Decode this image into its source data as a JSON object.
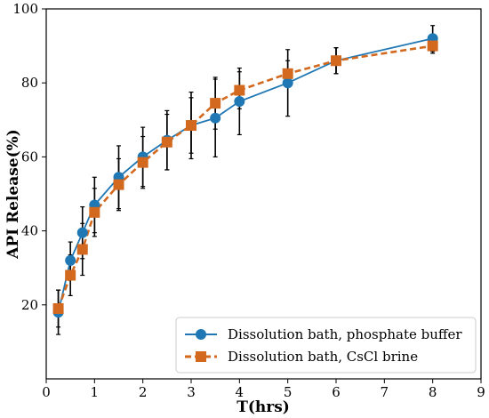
{
  "chart_data": {
    "type": "line",
    "title": "",
    "xlabel": "T(hrs)",
    "ylabel": "API Release(%)",
    "xlim": [
      0,
      9
    ],
    "ylim": [
      0,
      100
    ],
    "xticks": [
      0,
      1,
      2,
      3,
      4,
      5,
      6,
      7,
      8,
      9
    ],
    "yticks": [
      20,
      40,
      60,
      80,
      100
    ],
    "grid": false,
    "legend_position": "bottom-right",
    "series": [
      {
        "name": "Dissolution bath, phosphate buffer",
        "color": "#1f77b4",
        "line_style": "solid",
        "marker": "circle",
        "x": [
          0.25,
          0.5,
          0.75,
          1,
          1.5,
          2,
          2.5,
          3,
          3.5,
          4,
          5,
          6,
          8
        ],
        "y": [
          18,
          32,
          39.5,
          47,
          54.5,
          60,
          64.5,
          68.5,
          70.5,
          75,
          80,
          86,
          92
        ],
        "err": [
          6,
          5,
          7,
          7.5,
          8.5,
          8,
          8,
          9,
          10.5,
          9,
          9,
          3.5,
          3.5
        ]
      },
      {
        "name": "Dissolution bath, CsCl brine",
        "color": "#d2691e",
        "line_style": "dashed",
        "marker": "square",
        "x": [
          0.25,
          0.5,
          0.75,
          1,
          1.5,
          2,
          2.5,
          3,
          3.5,
          4,
          5,
          6,
          8
        ],
        "y": [
          19,
          28,
          35,
          45,
          52.5,
          58.5,
          64,
          68.5,
          74.5,
          78,
          82.5,
          86,
          90
        ],
        "err": [
          5,
          5.5,
          7,
          6.5,
          7,
          7,
          7.5,
          7.5,
          7,
          5,
          3.5,
          3.5,
          2
        ]
      }
    ]
  }
}
